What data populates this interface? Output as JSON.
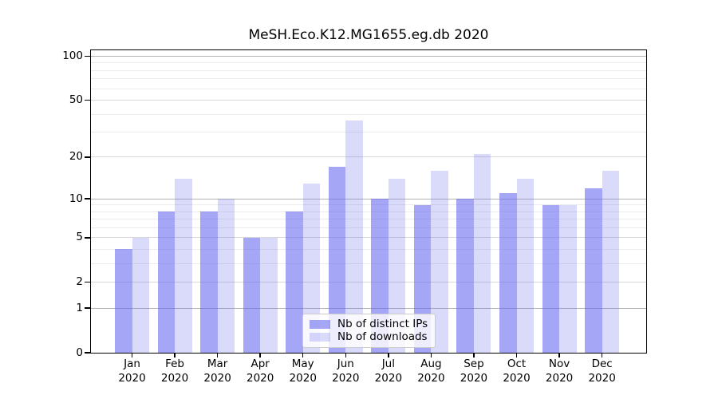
{
  "title": "MeSH.Eco.K12.MG1655.eg.db 2020",
  "legend": {
    "items": [
      {
        "label": "Nb of distinct IPs",
        "series_key": "distinct_ips"
      },
      {
        "label": "Nb of downloads",
        "series_key": "downloads"
      }
    ]
  },
  "colors": {
    "bar_distinct_ips": "rgba(102,102,240,0.58)",
    "bar_downloads": "rgba(102,102,240,0.24)",
    "grid_major": "#b4b4b4",
    "grid_mid": "#d8d8d8",
    "grid_minor": "#ececec",
    "axis": "#000000",
    "legend_border": "#cccccc",
    "legend_bg": "rgba(255,255,255,0.8)"
  },
  "chart_data": {
    "type": "bar",
    "title": "MeSH.Eco.K12.MG1655.eg.db 2020",
    "categories": [
      "Jan 2020",
      "Feb 2020",
      "Mar 2020",
      "Apr 2020",
      "May 2020",
      "Jun 2020",
      "Jul 2020",
      "Aug 2020",
      "Sep 2020",
      "Oct 2020",
      "Nov 2020",
      "Dec 2020"
    ],
    "x_tick_line1": [
      "Jan",
      "Feb",
      "Mar",
      "Apr",
      "May",
      "Jun",
      "Jul",
      "Aug",
      "Sep",
      "Oct",
      "Nov",
      "Dec"
    ],
    "x_tick_line2": "2020",
    "series": [
      {
        "name": "Nb of distinct IPs",
        "key": "distinct_ips",
        "values": [
          4,
          8,
          8,
          5,
          8,
          17,
          10,
          9,
          10,
          11,
          9,
          12
        ]
      },
      {
        "name": "Nb of downloads",
        "key": "downloads",
        "values": [
          5,
          14,
          10,
          5,
          13,
          36,
          14,
          16,
          21,
          14,
          9,
          16
        ]
      }
    ],
    "yscale": "log1p",
    "ylim": [
      0,
      110
    ],
    "y_tick_values": [
      100,
      50,
      20,
      10,
      5,
      2,
      1,
      0
    ],
    "y_tick_labels": [
      "100",
      "50",
      "20",
      "10",
      "5",
      "2",
      "1",
      "0"
    ],
    "gridlines": {
      "major": [
        1,
        10,
        100
      ],
      "mid": [
        2,
        5,
        20,
        50
      ],
      "minor": [
        3,
        4,
        6,
        7,
        8,
        9,
        30,
        40,
        60,
        70,
        80,
        90
      ]
    },
    "grid": "horizontal",
    "legend_position": "inside lower center"
  }
}
